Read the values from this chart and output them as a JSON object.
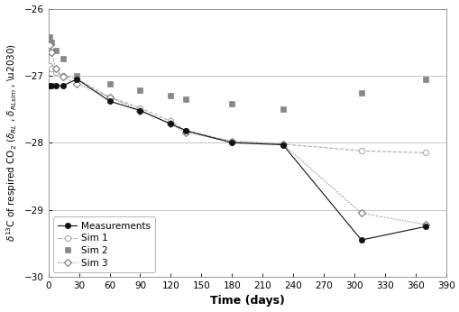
{
  "measurements_x": [
    1,
    3,
    7,
    14,
    28,
    60,
    90,
    120,
    135,
    180,
    230,
    307,
    370
  ],
  "measurements_y": [
    -27.15,
    -27.15,
    -27.15,
    -27.15,
    -27.05,
    -27.38,
    -27.52,
    -27.72,
    -27.82,
    -28.0,
    -28.03,
    -29.45,
    -29.25
  ],
  "sim1_x": [
    1,
    3,
    7,
    14,
    28,
    60,
    90,
    120,
    135,
    180,
    230,
    307,
    370
  ],
  "sim1_y": [
    -26.85,
    -26.9,
    -26.95,
    -27.0,
    -27.05,
    -27.32,
    -27.48,
    -27.68,
    -27.82,
    -27.98,
    -28.02,
    -28.12,
    -28.15
  ],
  "sim2_x": [
    1,
    3,
    7,
    14,
    28,
    60,
    90,
    120,
    135,
    180,
    230,
    307,
    370
  ],
  "sim2_y": [
    -26.42,
    -26.5,
    -26.62,
    -26.75,
    -27.0,
    -27.12,
    -27.22,
    -27.3,
    -27.35,
    -27.42,
    -27.5,
    -27.25,
    -27.05
  ],
  "sim3_x": [
    1,
    3,
    7,
    14,
    28,
    60,
    90,
    120,
    135,
    180,
    230,
    307,
    370
  ],
  "sim3_y": [
    -26.55,
    -26.65,
    -26.9,
    -27.02,
    -27.12,
    -27.32,
    -27.52,
    -27.72,
    -27.85,
    -27.98,
    -28.02,
    -29.05,
    -29.22
  ],
  "xlim": [
    0,
    390
  ],
  "ylim": [
    -30,
    -26
  ],
  "xticks": [
    0,
    30,
    60,
    90,
    120,
    150,
    180,
    210,
    240,
    270,
    300,
    330,
    360,
    390
  ],
  "yticks": [
    -30,
    -29,
    -28,
    -27,
    -26
  ],
  "xlabel": "Time (days)",
  "ylabel": "δ¹³C of respired CO₂ (δRL , δRLsim , ‰)",
  "grid_color": "#c8c8c8",
  "background_color": "#ffffff",
  "meas_color": "#111111",
  "sim1_color": "#aaaaaa",
  "sim2_color": "#888888",
  "sim3_color": "#777777"
}
